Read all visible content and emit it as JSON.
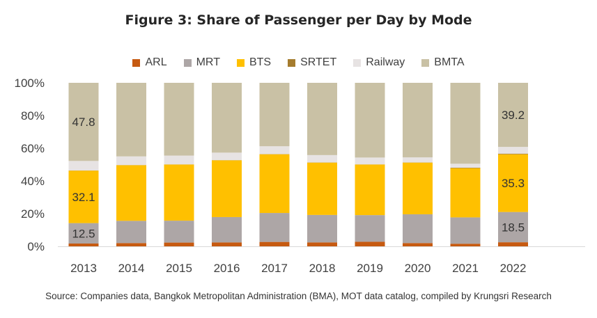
{
  "chart_data": {
    "type": "bar",
    "stacked": true,
    "title": "Figure 3: Share of Passenger per Day by Mode",
    "categories": [
      "2013",
      "2014",
      "2015",
      "2016",
      "2017",
      "2018",
      "2019",
      "2020",
      "2021",
      "2022"
    ],
    "yticks": [
      "0%",
      "20%",
      "40%",
      "60%",
      "80%",
      "100%"
    ],
    "ylim": [
      0,
      100
    ],
    "grid": false,
    "legend_position": "top",
    "series": [
      {
        "name": "ARL",
        "color": "#C65A11",
        "values": [
          1.7,
          2.0,
          2.3,
          2.4,
          2.7,
          2.4,
          2.8,
          2.0,
          1.6,
          2.5
        ]
      },
      {
        "name": "MRT",
        "color": "#ADA6A6",
        "values": [
          12.5,
          13.6,
          13.4,
          15.5,
          17.7,
          16.8,
          16.3,
          17.6,
          16.1,
          18.5
        ]
      },
      {
        "name": "BTS",
        "color": "#FFC000",
        "values": [
          32.1,
          34.0,
          34.3,
          34.7,
          35.9,
          32.0,
          30.9,
          31.6,
          30.1,
          35.3
        ]
      },
      {
        "name": "SRTET",
        "color": "#A57C2E",
        "values": [
          0.1,
          0.1,
          0.1,
          0.1,
          0.1,
          0.1,
          0.1,
          0.1,
          0.3,
          0.4
        ]
      },
      {
        "name": "Railway",
        "color": "#E7E3E3",
        "values": [
          5.8,
          5.3,
          5.4,
          4.6,
          4.8,
          4.5,
          4.2,
          3.1,
          2.4,
          4.1
        ]
      },
      {
        "name": "BMTA",
        "color": "#C9C1A5",
        "values": [
          47.8,
          45.0,
          44.5,
          42.7,
          38.8,
          44.2,
          45.7,
          45.6,
          49.5,
          39.2
        ]
      }
    ],
    "data_labels": [
      {
        "category": "2013",
        "series": "BMTA",
        "text": "47.8"
      },
      {
        "category": "2013",
        "series": "BTS",
        "text": "32.1"
      },
      {
        "category": "2013",
        "series": "MRT",
        "text": "12.5"
      },
      {
        "category": "2022",
        "series": "BMTA",
        "text": "39.2"
      },
      {
        "category": "2022",
        "series": "BTS",
        "text": "35.3"
      },
      {
        "category": "2022",
        "series": "MRT",
        "text": "18.5"
      }
    ]
  },
  "source_note": "Source: Companies data, Bangkok Metropolitan Administration (BMA), MOT data catalog, compiled by Krungsri Research"
}
